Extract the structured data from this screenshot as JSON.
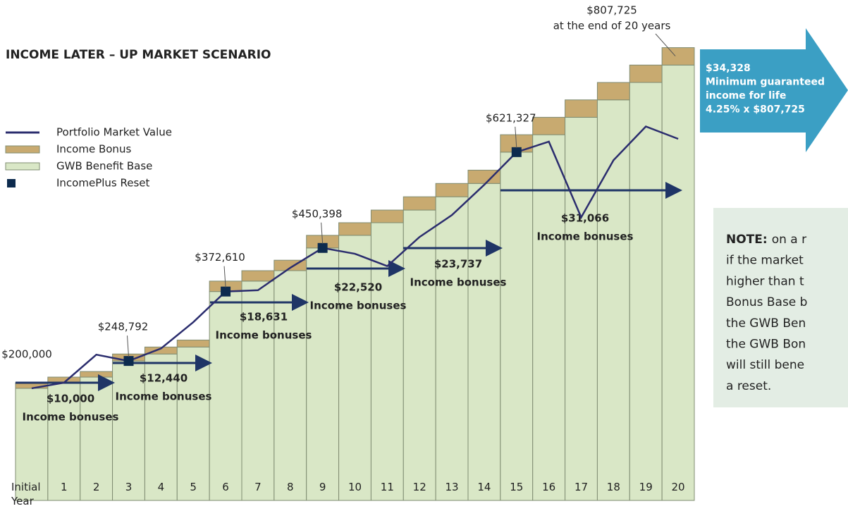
{
  "chart_data": {
    "type": "bar",
    "stacked": true,
    "title": "INCOME LATER – UP MARKET SCENARIO",
    "categories": [
      "Initial Year",
      "1",
      "2",
      "3",
      "4",
      "5",
      "6",
      "7",
      "8",
      "9",
      "10",
      "11",
      "12",
      "13",
      "14",
      "15",
      "16",
      "17",
      "18",
      "19",
      "20"
    ],
    "series": [
      {
        "name": "Portfolio Market Value",
        "type": "line",
        "color": "#2b2d6e",
        "values": [
          200000,
          210000,
          260000,
          248792,
          271000,
          318000,
          372610,
          375000,
          415000,
          450398,
          440000,
          418000,
          470000,
          509000,
          563000,
          621327,
          640000,
          505000,
          607000,
          667000,
          645000
        ]
      },
      {
        "name": "Income Bonus",
        "type": "bar",
        "color": "#c8aa70",
        "values": [
          10000,
          10000,
          10000,
          12440,
          12440,
          12440,
          18631,
          18631,
          18631,
          22520,
          22520,
          22520,
          23737,
          23737,
          23737,
          31066,
          31066,
          31066,
          31066,
          31066,
          31066
        ]
      },
      {
        "name": "GWB Benefit Base",
        "type": "bar",
        "color": "#d9e7c6",
        "values": [
          200000,
          210000,
          220000,
          248792,
          261232,
          273672,
          372610,
          391241,
          409872,
          450398,
          472918,
          495438,
          517958,
          541695,
          565432,
          621327,
          652393,
          683459,
          714525,
          745591,
          776657
        ]
      },
      {
        "name": "IncomePlus Reset",
        "type": "scatter",
        "color": "#0d2b4e",
        "values": [
          null,
          null,
          null,
          248792,
          null,
          null,
          372610,
          null,
          null,
          450398,
          null,
          null,
          null,
          null,
          null,
          621327,
          null,
          null,
          null,
          null,
          null
        ]
      }
    ],
    "ylim": [
      0,
      860000
    ],
    "annotations": [
      "$200,000",
      "$248,792",
      "$372,610",
      "$450,398",
      "$621,327"
    ],
    "end_annotation": [
      "$807,725",
      "at the end of 20 years"
    ],
    "bonus_labels": [
      {
        "amount": "$10,000",
        "text": "Income bonuses"
      },
      {
        "amount": "$12,440",
        "text": "Income bonuses"
      },
      {
        "amount": "$18,631",
        "text": "Income bonuses"
      },
      {
        "amount": "$22,520",
        "text": "Income bonuses"
      },
      {
        "amount": "$23,737",
        "text": "Income bonuses"
      },
      {
        "amount": "$31,066",
        "text": "Income bonuses"
      }
    ],
    "callout": [
      "$34,328",
      "Minimum guaranteed",
      "income for life",
      "4.25% x $807,725"
    ],
    "note": {
      "label": "NOTE:",
      "lines": [
        "on a r",
        "if the market",
        "higher than t",
        "Bonus Base b",
        "the GWB Ben",
        "the GWB Bon",
        "will still bene",
        "a reset."
      ]
    }
  }
}
